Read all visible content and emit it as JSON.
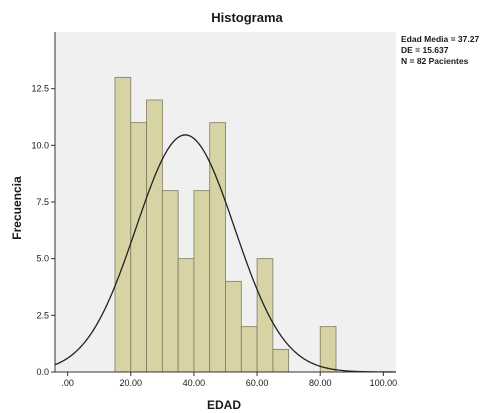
{
  "chart_data": {
    "type": "bar",
    "subtype": "histogram",
    "title": "Histograma",
    "xlabel": "EDAD",
    "ylabel": "Frecuencia",
    "xlim": [
      -4,
      104
    ],
    "ylim": [
      0,
      15
    ],
    "x_ticks": [
      {
        "value": 0,
        "label": ".00"
      },
      {
        "value": 20,
        "label": "20.00"
      },
      {
        "value": 40,
        "label": "40.00"
      },
      {
        "value": 60,
        "label": "60.00"
      },
      {
        "value": 80,
        "label": "80.00"
      },
      {
        "value": 100,
        "label": "100.00"
      }
    ],
    "y_ticks": [
      {
        "value": 0,
        "label": "0.0"
      },
      {
        "value": 2.5,
        "label": "2.5"
      },
      {
        "value": 5,
        "label": "5.0"
      },
      {
        "value": 7.5,
        "label": "7.5"
      },
      {
        "value": 10,
        "label": "10.0"
      },
      {
        "value": 12.5,
        "label": "12.5"
      }
    ],
    "bins": [
      {
        "from": 15,
        "to": 20,
        "count": 13
      },
      {
        "from": 20,
        "to": 25,
        "count": 11
      },
      {
        "from": 25,
        "to": 30,
        "count": 12
      },
      {
        "from": 30,
        "to": 35,
        "count": 8
      },
      {
        "from": 35,
        "to": 40,
        "count": 5
      },
      {
        "from": 40,
        "to": 45,
        "count": 8
      },
      {
        "from": 45,
        "to": 50,
        "count": 11
      },
      {
        "from": 50,
        "to": 55,
        "count": 4
      },
      {
        "from": 55,
        "to": 60,
        "count": 2
      },
      {
        "from": 60,
        "to": 65,
        "count": 5
      },
      {
        "from": 65,
        "to": 70,
        "count": 1
      },
      {
        "from": 70,
        "to": 75,
        "count": 0
      },
      {
        "from": 75,
        "to": 80,
        "count": 0
      },
      {
        "from": 80,
        "to": 85,
        "count": 2
      }
    ],
    "normal_curve": {
      "mean": 37.27,
      "sd": 15.637,
      "n": 82,
      "bin_width": 5
    },
    "stats_lines": [
      "Edad Media = 37.27",
      "DE = 15.637",
      "N = 82 Pacientes"
    ],
    "colors": {
      "plot_background": "#f0f0f0",
      "bar_fill": "#d8d3a5",
      "bar_stroke": "#7d7a5e",
      "curve": "#222222",
      "axis": "#333333"
    },
    "grid": false
  }
}
